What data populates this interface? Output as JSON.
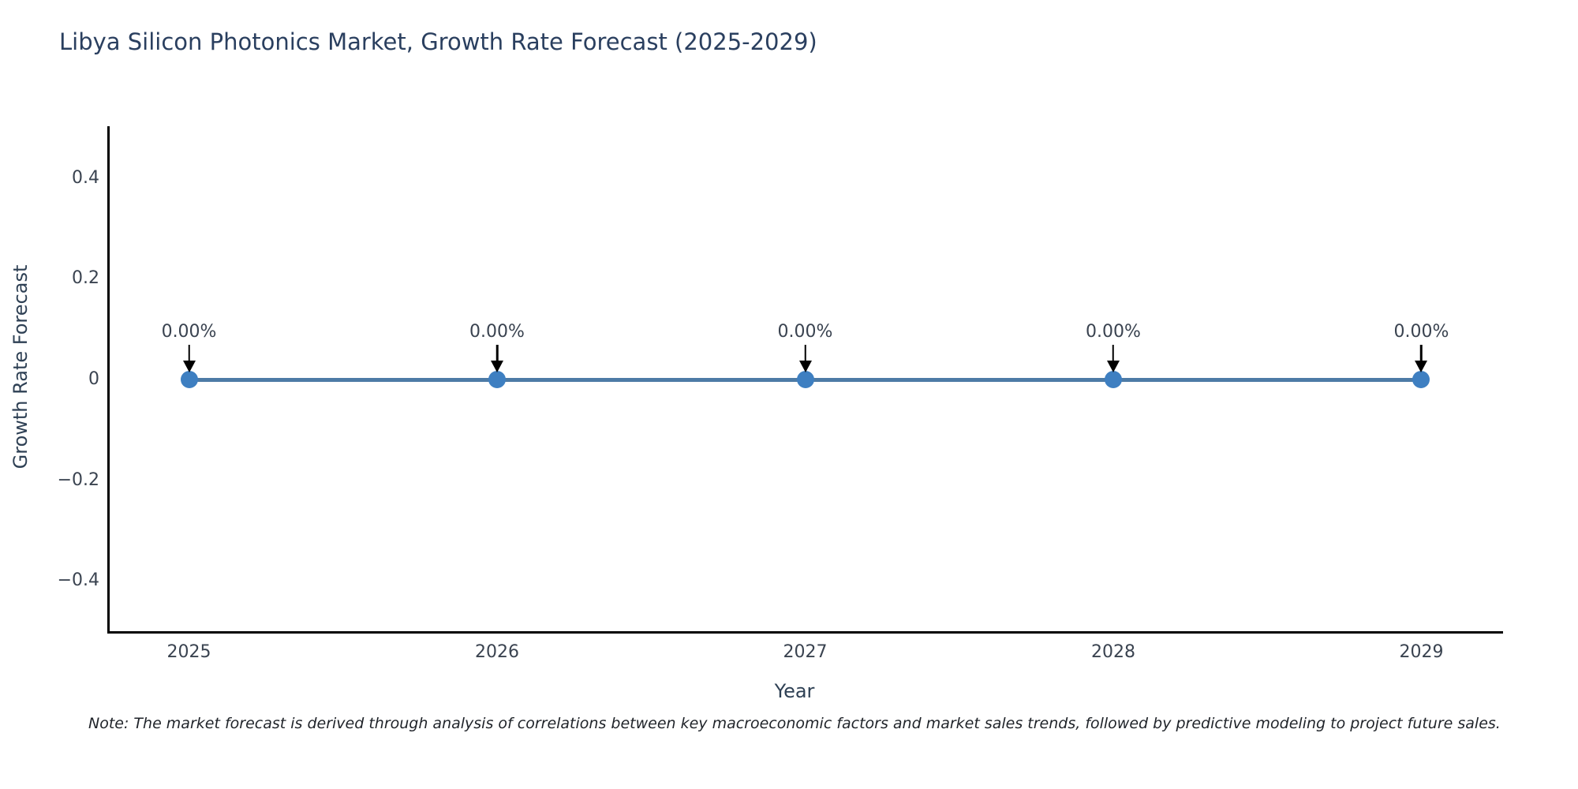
{
  "figure": {
    "title": "Libya Silicon Photonics Market, Growth Rate Forecast (2025-2029)",
    "note": "Note: The market forecast is derived through analysis of correlations between key macroeconomic factors and market sales trends, followed by predictive modeling to project future sales."
  },
  "chart_data": {
    "type": "line",
    "title": "Libya Silicon Photonics Market, Growth Rate Forecast (2025-2029)",
    "xlabel": "Year",
    "ylabel": "Growth Rate Forecast",
    "x": [
      2025,
      2026,
      2027,
      2028,
      2029
    ],
    "series": [
      {
        "name": "Growth Rate Forecast",
        "values": [
          0,
          0,
          0,
          0,
          0
        ]
      }
    ],
    "point_labels": [
      "0.00%",
      "0.00%",
      "0.00%",
      "0.00%",
      "0.00%"
    ],
    "xticks": [
      2025,
      2026,
      2027,
      2028,
      2029
    ],
    "yticks": [
      0.4,
      0.2,
      0,
      -0.2,
      -0.4
    ],
    "ylim": [
      -0.5,
      0.5
    ],
    "xlim": [
      2024.74,
      2029.26
    ],
    "grid": false,
    "legend_position": "none",
    "marker_style": "circle",
    "annotation_arrow_direction": "down",
    "colors": {
      "line": "#4d7ba6",
      "marker": "#3e7fc1",
      "arrow": "#000000",
      "axis": "#000000",
      "title_text": "#2a3f5f",
      "tick_text": "#3a4350"
    }
  }
}
